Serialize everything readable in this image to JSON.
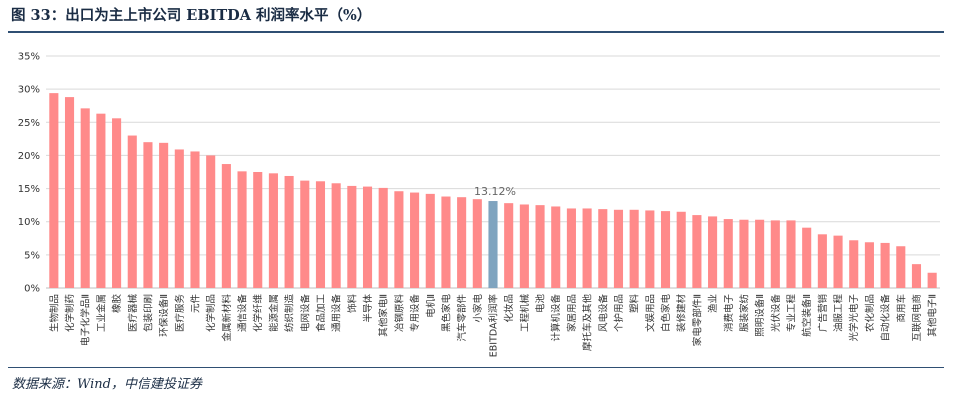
{
  "figure": {
    "title": "图 33：出口为主上市公司 EBITDA 利润率水平（%）",
    "source": "数据来源：Wind，中信建投证券"
  },
  "colors": {
    "bar": "#ff8a8a",
    "highlight": "#7fa4bf",
    "grid": "#d9d9d9",
    "axis": "#bfbfbf",
    "tick": "#333333",
    "label": "#666666"
  },
  "chart_data": {
    "type": "bar",
    "title": "",
    "xlabel": "",
    "ylabel": "",
    "ylim": [
      0,
      35
    ],
    "yticks": [
      "0%",
      "5%",
      "10%",
      "15%",
      "20%",
      "25%",
      "30%",
      "35%"
    ],
    "grid": true,
    "legend": "none",
    "highlight_category": "EBITDA利润率",
    "highlight_label": "13.12%",
    "categories": [
      "生物制品",
      "化学制药",
      "电子化学品Ⅱ",
      "工业金属",
      "橡胶",
      "医疗器械",
      "包装印刷",
      "环保设备Ⅱ",
      "医疗服务",
      "元件",
      "化学制品",
      "金属新材料",
      "通信设备",
      "化学纤维",
      "能源金属",
      "纺织制造",
      "电网设备",
      "食品加工",
      "通用设备",
      "饰料",
      "半导体",
      "其他家电Ⅱ",
      "冶钢原料",
      "专用设备",
      "电机Ⅱ",
      "黑色家电",
      "汽车零部件",
      "小家电",
      "EBITDA利润率",
      "化妆品",
      "工程机械",
      "电池",
      "计算机设备",
      "家居用品",
      "摩托车及其他",
      "风电设备",
      "个护用品",
      "塑料",
      "文娱用品",
      "白色家电",
      "装修建材",
      "家电零部件Ⅱ",
      "渔业",
      "消费电子",
      "服装家纺",
      "照明设备Ⅱ",
      "光伏设备",
      "专业工程",
      "航空装备Ⅱ",
      "广告营销",
      "油服工程",
      "光学光电子",
      "农化制品",
      "自动化设备",
      "商用车",
      "互联网电商",
      "其他电子Ⅱ"
    ],
    "values": [
      29.4,
      28.8,
      27.1,
      26.3,
      25.6,
      23.0,
      22.0,
      21.9,
      20.9,
      20.6,
      20.0,
      18.7,
      17.6,
      17.5,
      17.3,
      16.9,
      16.2,
      16.1,
      15.8,
      15.4,
      15.3,
      15.1,
      14.6,
      14.4,
      14.2,
      13.8,
      13.7,
      13.4,
      13.12,
      12.8,
      12.6,
      12.5,
      12.3,
      12.0,
      12.0,
      11.9,
      11.8,
      11.8,
      11.7,
      11.6,
      11.5,
      11.0,
      10.8,
      10.4,
      10.3,
      10.3,
      10.2,
      10.2,
      9.1,
      8.1,
      7.9,
      7.2,
      6.9,
      6.8,
      6.3,
      3.6,
      2.3
    ]
  }
}
